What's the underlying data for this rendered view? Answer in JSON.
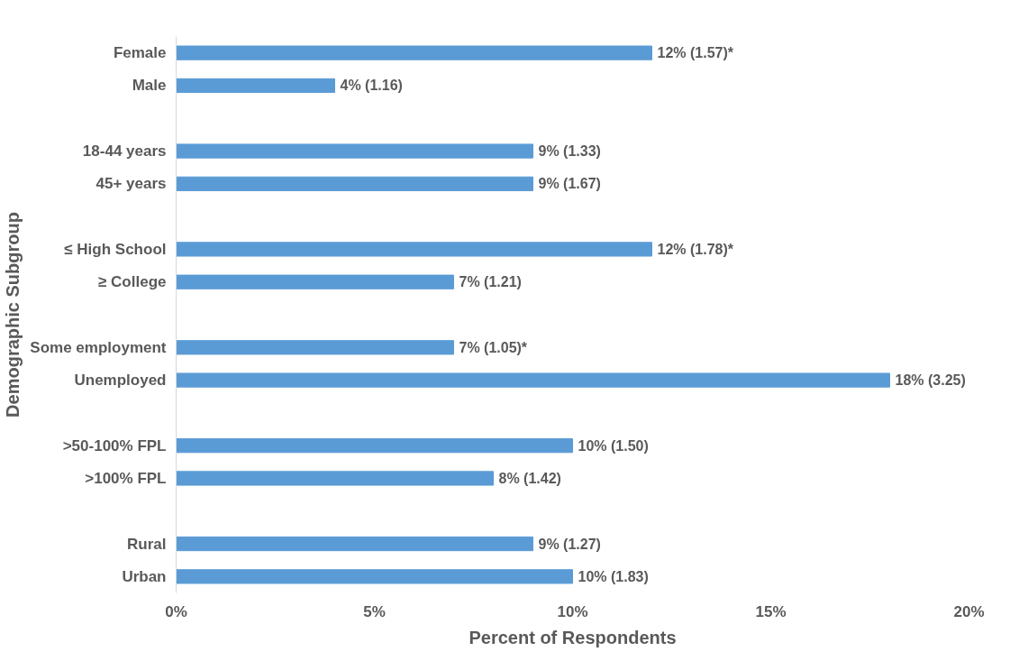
{
  "chart_data": {
    "type": "bar",
    "orientation": "horizontal",
    "categories": [
      "Female",
      "Male",
      null,
      "18-44 years",
      "45+ years",
      null,
      "≤ High School",
      "≥ College",
      null,
      "Some employment",
      "Unemployed",
      null,
      ">50-100% FPL",
      ">100% FPL",
      null,
      "Rural",
      "Urban"
    ],
    "values": [
      12,
      4,
      null,
      9,
      9,
      null,
      12,
      7,
      null,
      7,
      18,
      null,
      10,
      8,
      null,
      9,
      10
    ],
    "value_labels": [
      "12% (1.57)*",
      "4% (1.16)",
      null,
      "9% (1.33)",
      "9% (1.67)",
      null,
      "12% (1.78)*",
      "7% (1.21)",
      null,
      "7% (1.05)*",
      "18% (3.25)",
      null,
      "10% (1.50)",
      "8% (1.42)",
      null,
      "9% (1.27)",
      "10% (1.83)"
    ],
    "color": "#5b9bd5",
    "xlim": [
      0,
      20
    ],
    "xticks": [
      {
        "value": 0,
        "label": "0%"
      },
      {
        "value": 5,
        "label": "5%"
      },
      {
        "value": 10,
        "label": "10%"
      },
      {
        "value": 15,
        "label": "15%"
      },
      {
        "value": 20,
        "label": "20%"
      }
    ],
    "xlabel": "Percent of Respondents",
    "ylabel": "Demographic Subgroup",
    "grid": false
  }
}
